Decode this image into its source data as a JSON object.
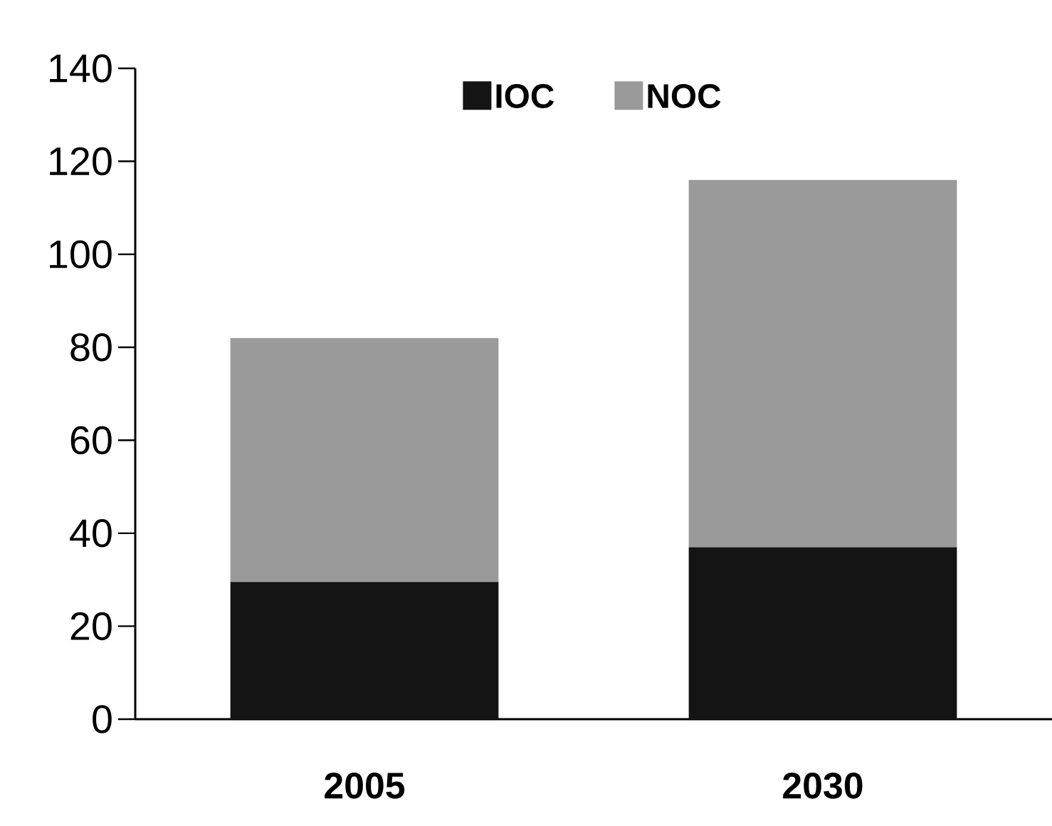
{
  "chart_data": {
    "type": "bar",
    "stacked": true,
    "categories": [
      "2005",
      "2030"
    ],
    "series": [
      {
        "name": "IOC",
        "color": "#141414",
        "values": [
          29.5,
          37
        ]
      },
      {
        "name": "NOC",
        "color": "#9a9a9a",
        "values": [
          52.5,
          79
        ]
      }
    ],
    "ylim": [
      0,
      140
    ],
    "yticks": [
      0,
      20,
      40,
      60,
      80,
      100,
      120,
      140
    ],
    "legend": "top",
    "grid": false
  }
}
